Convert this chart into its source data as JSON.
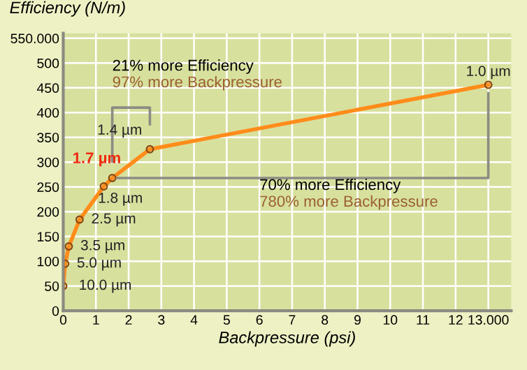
{
  "chart_data": {
    "type": "line",
    "ylabel": "Efficiency (N/m)",
    "xlabel": "Backpressure (psi)",
    "x": [
      0,
      0.06,
      0.17,
      0.5,
      1.24,
      1.5,
      2.65,
      13
    ],
    "series": [
      {
        "color": "#ff8c1a",
        "values": [
          50,
          95,
          130,
          184,
          251,
          268,
          326,
          456
        ]
      }
    ],
    "marker": "circle",
    "line_style": "solid",
    "grid": true,
    "legend": false,
    "xlim": [
      0,
      13.7
    ],
    "ylim": [
      0,
      560
    ],
    "xticks": [
      0,
      1,
      2,
      3,
      4,
      5,
      6,
      7,
      8,
      9,
      10,
      11,
      12,
      {
        "value": 13,
        "label": "13.000"
      }
    ],
    "yticks": [
      0,
      50,
      100,
      150,
      200,
      250,
      300,
      350,
      400,
      450,
      500,
      {
        "value": 550,
        "label": "550.000"
      }
    ],
    "annotations": [
      {
        "text": "10.0 µm",
        "x": 0,
        "y": 50
      },
      {
        "text": "5.0 µm",
        "x": 0.06,
        "y": 95
      },
      {
        "text": "3.5 µm",
        "x": 0.17,
        "y": 130
      },
      {
        "text": "2.5 µm",
        "x": 0.5,
        "y": 184
      },
      {
        "text": "1.8 µm",
        "x": 1.24,
        "y": 251
      },
      {
        "text": "1.7 µm",
        "x": 1.5,
        "y": 268
      },
      {
        "text": "1.4 µm",
        "x": 2.65,
        "y": 326
      },
      {
        "text": "1.0 µm",
        "x": 13,
        "y": 456
      },
      "21% more Efficiency",
      "97% more Backpressure",
      "70% more Efficiency",
      "780% more Backpressure"
    ]
  }
}
